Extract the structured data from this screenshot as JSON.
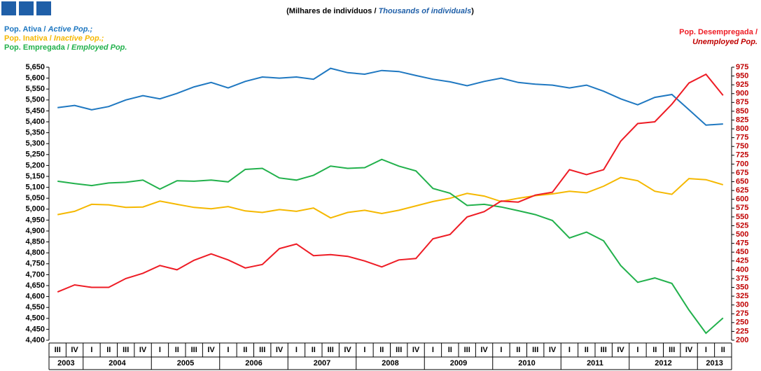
{
  "chart_data": {
    "type": "line",
    "subtitle_pt": "(Milhares de indivíduos /",
    "subtitle_en": "Thousands of individuals",
    "subtitle_end": ")",
    "years": [
      "2003",
      "2004",
      "2005",
      "2006",
      "2007",
      "2008",
      "2009",
      "2010",
      "2011",
      "2012",
      "2013"
    ],
    "quarters": [
      [
        "III",
        "IV"
      ],
      [
        "I",
        "II",
        "III",
        "IV"
      ],
      [
        "I",
        "II",
        "III",
        "IV"
      ],
      [
        "I",
        "II",
        "III",
        "IV"
      ],
      [
        "I",
        "II",
        "III",
        "IV"
      ],
      [
        "I",
        "II",
        "III",
        "IV"
      ],
      [
        "I",
        "II",
        "III",
        "IV"
      ],
      [
        "I",
        "II",
        "III",
        "IV"
      ],
      [
        "I",
        "II",
        "III",
        "IV"
      ],
      [
        "I",
        "II",
        "III",
        "IV"
      ],
      [
        "I",
        "II"
      ]
    ],
    "ylim": [
      4400,
      5650
    ],
    "yticks": [
      {
        "value": 4400,
        "label": "4,400"
      },
      {
        "value": 4450,
        "label": "4,450"
      },
      {
        "value": 4500,
        "label": "4,500"
      },
      {
        "value": 4550,
        "label": "4,550"
      },
      {
        "value": 4600,
        "label": "4,600"
      },
      {
        "value": 4650,
        "label": "4,650"
      },
      {
        "value": 4700,
        "label": "4,700"
      },
      {
        "value": 4750,
        "label": "4,750"
      },
      {
        "value": 4800,
        "label": "4,800"
      },
      {
        "value": 4850,
        "label": "4,850"
      },
      {
        "value": 4900,
        "label": "4,900"
      },
      {
        "value": 4950,
        "label": "4,950"
      },
      {
        "value": 5000,
        "label": "5,000"
      },
      {
        "value": 5050,
        "label": "5,050"
      },
      {
        "value": 5100,
        "label": "5,100"
      },
      {
        "value": 5150,
        "label": "5,150"
      },
      {
        "value": 5200,
        "label": "5,200"
      },
      {
        "value": 5250,
        "label": "5,250"
      },
      {
        "value": 5300,
        "label": "5,300"
      },
      {
        "value": 5350,
        "label": "5,350"
      },
      {
        "value": 5400,
        "label": "5,400"
      },
      {
        "value": 5450,
        "label": "5,450"
      },
      {
        "value": 5500,
        "label": "5,500"
      },
      {
        "value": 5550,
        "label": "5,550"
      },
      {
        "value": 5600,
        "label": "5,600"
      },
      {
        "value": 5650,
        "label": "5,650"
      }
    ],
    "y2lim": [
      200,
      975
    ],
    "y2ticks": [
      200,
      225,
      250,
      275,
      300,
      325,
      350,
      375,
      400,
      425,
      450,
      475,
      500,
      525,
      550,
      575,
      600,
      625,
      650,
      675,
      700,
      725,
      750,
      775,
      800,
      825,
      850,
      875,
      900,
      925,
      950,
      975
    ],
    "y2color": "#c00000",
    "series": [
      {
        "name": "Pop. Ativa /",
        "name_en": "Active Pop.;",
        "color": "#1f78c1",
        "values": [
          5465,
          5475,
          5455,
          5470,
          5500,
          5520,
          5505,
          5530,
          5560,
          5580,
          5555,
          5585,
          5605,
          5600,
          5605,
          5595,
          5645,
          5625,
          5618,
          5635,
          5630,
          5612,
          5595,
          5583,
          5565,
          5585,
          5600,
          5580,
          5572,
          5568,
          5555,
          5568,
          5540,
          5505,
          5478,
          5512,
          5525,
          5455,
          5385,
          5390
        ]
      },
      {
        "name": "Pop. Inativa /",
        "name_en": "Inactive Pop.;",
        "color": "#f5b800",
        "values": [
          4975,
          4990,
          5022,
          5020,
          5008,
          5010,
          5037,
          5022,
          5008,
          5002,
          5012,
          4992,
          4985,
          4998,
          4990,
          5005,
          4960,
          4985,
          4995,
          4980,
          4995,
          5015,
          5035,
          5050,
          5072,
          5060,
          5035,
          5050,
          5062,
          5070,
          5082,
          5075,
          5105,
          5145,
          5130,
          5082,
          5068,
          5140,
          5135,
          5112
        ]
      },
      {
        "name": "Pop. Empregada /",
        "name_en": "Employed Pop.",
        "color": "#22b14c",
        "values": [
          5128,
          5117,
          5108,
          5120,
          5123,
          5133,
          5092,
          5130,
          5128,
          5133,
          5125,
          5182,
          5187,
          5143,
          5133,
          5155,
          5197,
          5187,
          5190,
          5228,
          5197,
          5175,
          5095,
          5073,
          5017,
          5022,
          5010,
          4993,
          4975,
          4948,
          4868,
          4895,
          4855,
          4742,
          4665,
          4685,
          4660,
          4538,
          4432,
          4502
        ]
      },
      {
        "name": "Pop. Desempregada /",
        "name_en": "Unemployed Pop.",
        "color": "#ee1c25",
        "axis": "y2",
        "values": [
          337,
          357,
          350,
          350,
          375,
          390,
          412,
          400,
          427,
          445,
          428,
          405,
          415,
          460,
          473,
          440,
          443,
          438,
          425,
          408,
          428,
          432,
          488,
          500,
          550,
          565,
          595,
          592,
          612,
          620,
          684,
          670,
          684,
          765,
          815,
          820,
          870,
          930,
          955,
          895
        ]
      }
    ]
  }
}
